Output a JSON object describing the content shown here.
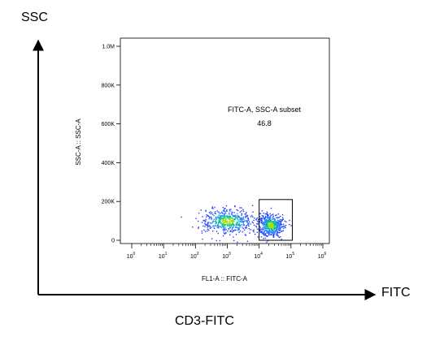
{
  "outer_axes": {
    "y_label": "SSC",
    "x_label": "FITC",
    "caption": "CD3-FITC"
  },
  "chart_data": {
    "type": "scatter",
    "xlabel": "FL1-A :: FITC-A",
    "ylabel": "SSC-A :: SSC-A",
    "xscale": "log",
    "xlim": [
      1,
      1000000
    ],
    "ylim": [
      0,
      1000000
    ],
    "x_ticks": [
      {
        "base": "10",
        "exp": "0"
      },
      {
        "base": "10",
        "exp": "1"
      },
      {
        "base": "10",
        "exp": "2"
      },
      {
        "base": "10",
        "exp": "3"
      },
      {
        "base": "10",
        "exp": "4"
      },
      {
        "base": "10",
        "exp": "5"
      },
      {
        "base": "10",
        "exp": "6"
      }
    ],
    "y_ticks": [
      "0",
      "200K",
      "400K",
      "600K",
      "800K",
      "1.0M"
    ],
    "y_tick_values": [
      0,
      200000,
      400000,
      600000,
      800000,
      1000000
    ],
    "gate": {
      "name": "FITC-A, SSC-A subset",
      "value": "46.8",
      "x_range": [
        10000,
        110000
      ],
      "y_range": [
        0,
        210000
      ]
    },
    "populations": [
      {
        "x_log_center": 3.0,
        "x_log_sd": 0.42,
        "y_center": 100000,
        "y_sd": 32000,
        "count": 520
      },
      {
        "x_log_center": 4.35,
        "x_log_sd": 0.2,
        "y_center": 80000,
        "y_sd": 30000,
        "count": 520
      }
    ]
  }
}
